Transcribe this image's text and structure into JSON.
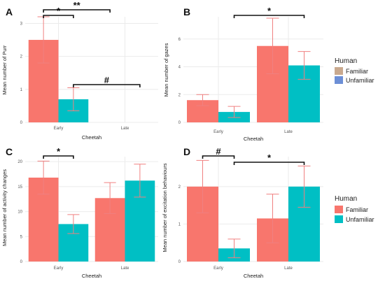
{
  "colors": {
    "familiar": "#f8766d",
    "unfamiliar": "#00bfc4",
    "error": "#f08080"
  },
  "legend_top": {
    "title": "Human",
    "items": [
      "Familiar",
      "Unfamiliar"
    ]
  },
  "legend_bottom": {
    "title": "Human",
    "items": [
      "Familiar",
      "Unfamiliar"
    ]
  },
  "chart_data": [
    {
      "panel": "A",
      "type": "bar",
      "xlabel": "Cheetah",
      "ylabel": "Mean number of Purr",
      "categories": [
        "Early",
        "Late"
      ],
      "ylim": [
        0,
        3.2
      ],
      "yticks": [
        0,
        1,
        2,
        3
      ],
      "series": [
        {
          "name": "Familiar",
          "values": [
            2.5,
            0
          ],
          "errors": [
            0.7,
            0
          ]
        },
        {
          "name": "Unfamiliar",
          "values": [
            0.7,
            0
          ],
          "errors": [
            0.35,
            0
          ]
        }
      ],
      "annotations": [
        {
          "text": "*",
          "from": "Early-Familiar",
          "to": "Early-Unfamiliar"
        },
        {
          "text": "**",
          "from": "Early-Familiar",
          "to": "Late-Familiar"
        },
        {
          "text": "#",
          "from": "Early-Unfamiliar",
          "to": "Late-Unfamiliar"
        }
      ]
    },
    {
      "panel": "B",
      "type": "bar",
      "xlabel": "Cheetah",
      "ylabel": "Mean number of gazes",
      "categories": [
        "Early",
        "Late"
      ],
      "ylim": [
        0,
        7.6
      ],
      "yticks": [
        0,
        2,
        4,
        6
      ],
      "series": [
        {
          "name": "Familiar",
          "values": [
            1.6,
            5.5
          ],
          "errors": [
            0.4,
            2.0
          ]
        },
        {
          "name": "Unfamiliar",
          "values": [
            0.75,
            4.1
          ],
          "errors": [
            0.4,
            1.0
          ]
        }
      ],
      "annotations": [
        {
          "text": "*",
          "from": "Early-Unfamiliar",
          "to": "Late-Unfamiliar"
        }
      ]
    },
    {
      "panel": "C",
      "type": "bar",
      "xlabel": "Cheetah",
      "ylabel": "Mean number of activity changes",
      "categories": [
        "Early",
        "Late"
      ],
      "ylim": [
        0,
        21
      ],
      "yticks": [
        0,
        5,
        10,
        15,
        20
      ],
      "series": [
        {
          "name": "Familiar",
          "values": [
            16.8,
            12.7
          ],
          "errors": [
            3.3,
            3.1
          ]
        },
        {
          "name": "Unfamiliar",
          "values": [
            7.5,
            16.2
          ],
          "errors": [
            1.9,
            3.3
          ]
        }
      ],
      "annotations": [
        {
          "text": "*",
          "from": "Early-Familiar",
          "to": "Early-Unfamiliar"
        }
      ]
    },
    {
      "panel": "D",
      "type": "bar",
      "xlabel": "Cheetah",
      "ylabel": "Mean number of excitation behaviours",
      "categories": [
        "Early",
        "Late"
      ],
      "ylim": [
        0,
        2.8
      ],
      "yticks": [
        0,
        1,
        2
      ],
      "series": [
        {
          "name": "Familiar",
          "values": [
            2.0,
            1.15
          ],
          "errors": [
            0.7,
            0.65
          ]
        },
        {
          "name": "Unfamiliar",
          "values": [
            0.35,
            2.0
          ],
          "errors": [
            0.25,
            0.55
          ]
        }
      ],
      "annotations": [
        {
          "text": "#",
          "from": "Early-Familiar",
          "to": "Early-Unfamiliar"
        },
        {
          "text": "*",
          "from": "Early-Unfamiliar",
          "to": "Late-Unfamiliar"
        }
      ]
    }
  ]
}
